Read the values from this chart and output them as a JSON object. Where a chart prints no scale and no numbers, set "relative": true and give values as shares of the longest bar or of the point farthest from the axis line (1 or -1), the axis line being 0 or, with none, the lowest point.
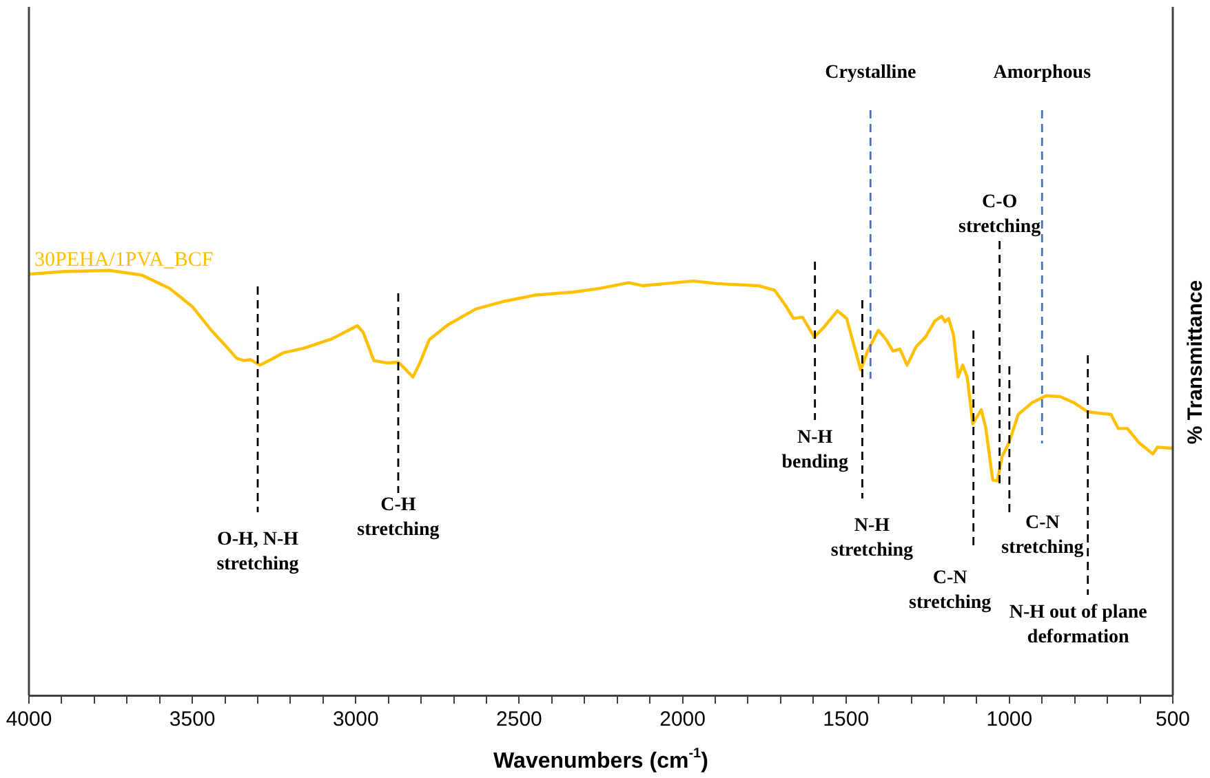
{
  "chart_data": {
    "type": "line",
    "relative": true,
    "xlabel": "Wavenumbers (cm$^{-1}$)",
    "ylabel": "% Transmittance",
    "xlim": [
      4000,
      500
    ],
    "xticks": [
      4000,
      {
        "value": 3900,
        "label": null
      },
      {
        "value": 3800,
        "label": null
      },
      {
        "value": 3700,
        "label": null
      },
      {
        "value": 3600,
        "label": null
      },
      3500,
      {
        "value": 3400,
        "label": null
      },
      {
        "value": 3300,
        "label": null
      },
      {
        "value": 3200,
        "label": null
      },
      {
        "value": 3100,
        "label": null
      },
      3000,
      {
        "value": 2900,
        "label": null
      },
      {
        "value": 2800,
        "label": null
      },
      {
        "value": 2700,
        "label": null
      },
      {
        "value": 2600,
        "label": null
      },
      2500,
      {
        "value": 2400,
        "label": null
      },
      {
        "value": 2300,
        "label": null
      },
      {
        "value": 2200,
        "label": null
      },
      {
        "value": 2100,
        "label": null
      },
      2000,
      {
        "value": 1900,
        "label": null
      },
      {
        "value": 1800,
        "label": null
      },
      {
        "value": 1700,
        "label": null
      },
      {
        "value": 1600,
        "label": null
      },
      1500,
      {
        "value": 1400,
        "label": null
      },
      {
        "value": 1300,
        "label": null
      },
      {
        "value": 1200,
        "label": null
      },
      {
        "value": 1100,
        "label": null
      },
      1000,
      {
        "value": 900,
        "label": null
      },
      {
        "value": 800,
        "label": null
      },
      {
        "value": 700,
        "label": null
      },
      {
        "value": 600,
        "label": null
      },
      500
    ],
    "grid": false,
    "legend": false,
    "marker": "none",
    "line_style": "solid",
    "series": [
      {
        "name": "30PEHA/1PVA_BCF",
        "color": "#ffc000",
        "x": [
          4000,
          3897,
          3754,
          3655,
          3570,
          3499,
          3442,
          3400,
          3364,
          3343,
          3322,
          3293,
          3265,
          3222,
          3158,
          3073,
          2995,
          2977,
          2945,
          2903,
          2870,
          2846,
          2825,
          2804,
          2775,
          2718,
          2633,
          2548,
          2449,
          2335,
          2250,
          2165,
          2122,
          2023,
          1966,
          1895,
          1768,
          1718,
          1682,
          1661,
          1633,
          1597,
          1569,
          1526,
          1498,
          1455,
          1434,
          1401,
          1377,
          1356,
          1335,
          1313,
          1285,
          1257,
          1228,
          1207,
          1197,
          1186,
          1171,
          1157,
          1143,
          1129,
          1112,
          1086,
          1072,
          1051,
          1037,
          1022,
          1001,
          973,
          930,
          888,
          845,
          803,
          760,
          689,
          667,
          639,
          604,
          561,
          547,
          512,
          500
        ],
        "values": [
          0.991,
          0.997,
          1,
          0.989,
          0.958,
          0.914,
          0.859,
          0.824,
          0.793,
          0.788,
          0.79,
          0.777,
          0.788,
          0.806,
          0.817,
          0.839,
          0.87,
          0.854,
          0.788,
          0.782,
          0.784,
          0.766,
          0.749,
          0.782,
          0.837,
          0.872,
          0.909,
          0.927,
          0.942,
          0.949,
          0.958,
          0.971,
          0.964,
          0.971,
          0.975,
          0.969,
          0.964,
          0.953,
          0.914,
          0.887,
          0.89,
          0.843,
          0.865,
          0.905,
          0.887,
          0.766,
          0.81,
          0.859,
          0.837,
          0.81,
          0.815,
          0.777,
          0.821,
          0.843,
          0.881,
          0.892,
          0.879,
          0.887,
          0.848,
          0.749,
          0.777,
          0.749,
          0.639,
          0.672,
          0.628,
          0.507,
          0.505,
          0.562,
          0.595,
          0.661,
          0.689,
          0.705,
          0.703,
          0.689,
          0.667,
          0.661,
          0.628,
          0.628,
          0.595,
          0.568,
          0.584,
          0.582,
          0.582
        ]
      }
    ],
    "ref_lines": [
      {
        "axis": "x",
        "value": 3300,
        "label": "O-H, N-H stretching",
        "color": "#000000",
        "line_style": "dashed"
      },
      {
        "axis": "x",
        "value": 2870,
        "label": "C-H stretching",
        "color": "#000000",
        "line_style": "dashed"
      },
      {
        "axis": "x",
        "value": 1595,
        "label": "N-H bending",
        "color": "#000000",
        "line_style": "dashed"
      },
      {
        "axis": "x",
        "value": 1450,
        "label": "N-H stretching",
        "color": "#000000",
        "line_style": "dashed"
      },
      {
        "axis": "x",
        "value": 1425,
        "label": "Crystalline",
        "color": "#4472c4",
        "line_style": "dashed"
      },
      {
        "axis": "x",
        "value": 1110,
        "label": "C-N stretching",
        "color": "#000000",
        "line_style": "dashed"
      },
      {
        "axis": "x",
        "value": 1030,
        "label": "C-O stretching",
        "color": "#000000",
        "line_style": "dashed"
      },
      {
        "axis": "x",
        "value": 1000,
        "label": "C-N stretching",
        "color": "#000000",
        "line_style": "dashed"
      },
      {
        "axis": "x",
        "value": 900,
        "label": "Amorphous",
        "color": "#4472c4",
        "line_style": "dashed"
      },
      {
        "axis": "x",
        "value": 760,
        "label": "N-H out of plane deformation",
        "color": "#000000",
        "line_style": "dashed"
      }
    ]
  }
}
